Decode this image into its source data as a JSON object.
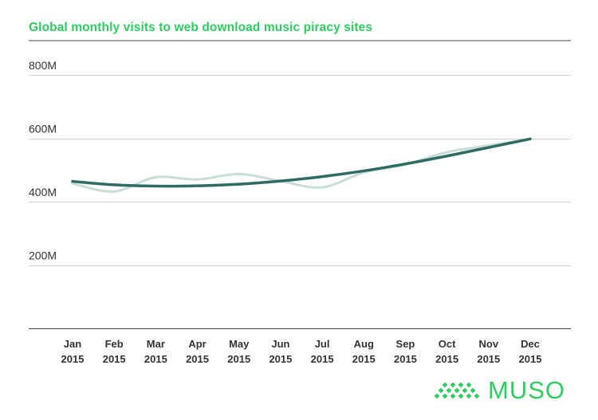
{
  "chart_data": {
    "type": "line",
    "title": "Global monthly visits to web download music piracy sites",
    "xlabel": "",
    "ylabel": "",
    "categories": [
      [
        "Jan",
        "2015"
      ],
      [
        "Feb",
        "2015"
      ],
      [
        "Mar",
        "2015"
      ],
      [
        "Apr",
        "2015"
      ],
      [
        "May",
        "2015"
      ],
      [
        "Jun",
        "2015"
      ],
      [
        "Jul",
        "2015"
      ],
      [
        "Aug",
        "2015"
      ],
      [
        "Sep",
        "2015"
      ],
      [
        "Oct",
        "2015"
      ],
      [
        "Nov",
        "2015"
      ],
      [
        "Dec",
        "2015"
      ]
    ],
    "y_ticks": [
      {
        "value": 200,
        "label": "200M"
      },
      {
        "value": 400,
        "label": "400M"
      },
      {
        "value": 600,
        "label": "600M"
      },
      {
        "value": 800,
        "label": "800M"
      }
    ],
    "ylim": [
      0,
      900
    ],
    "grid": true,
    "series": [
      {
        "role": "monthly",
        "color": "#c9dcd6",
        "values": [
          457,
          432,
          477,
          470,
          487,
          465,
          445,
          492,
          517,
          556,
          577,
          598
        ]
      },
      {
        "role": "trend",
        "color": "#2e6b63",
        "values": [
          464,
          453,
          449,
          450,
          455,
          465,
          479,
          497,
          519,
          544,
          571,
          598
        ]
      }
    ]
  },
  "brand": {
    "name": "MUSO",
    "color": "#2ecc5f",
    "icon": "muso-logo-icon"
  }
}
